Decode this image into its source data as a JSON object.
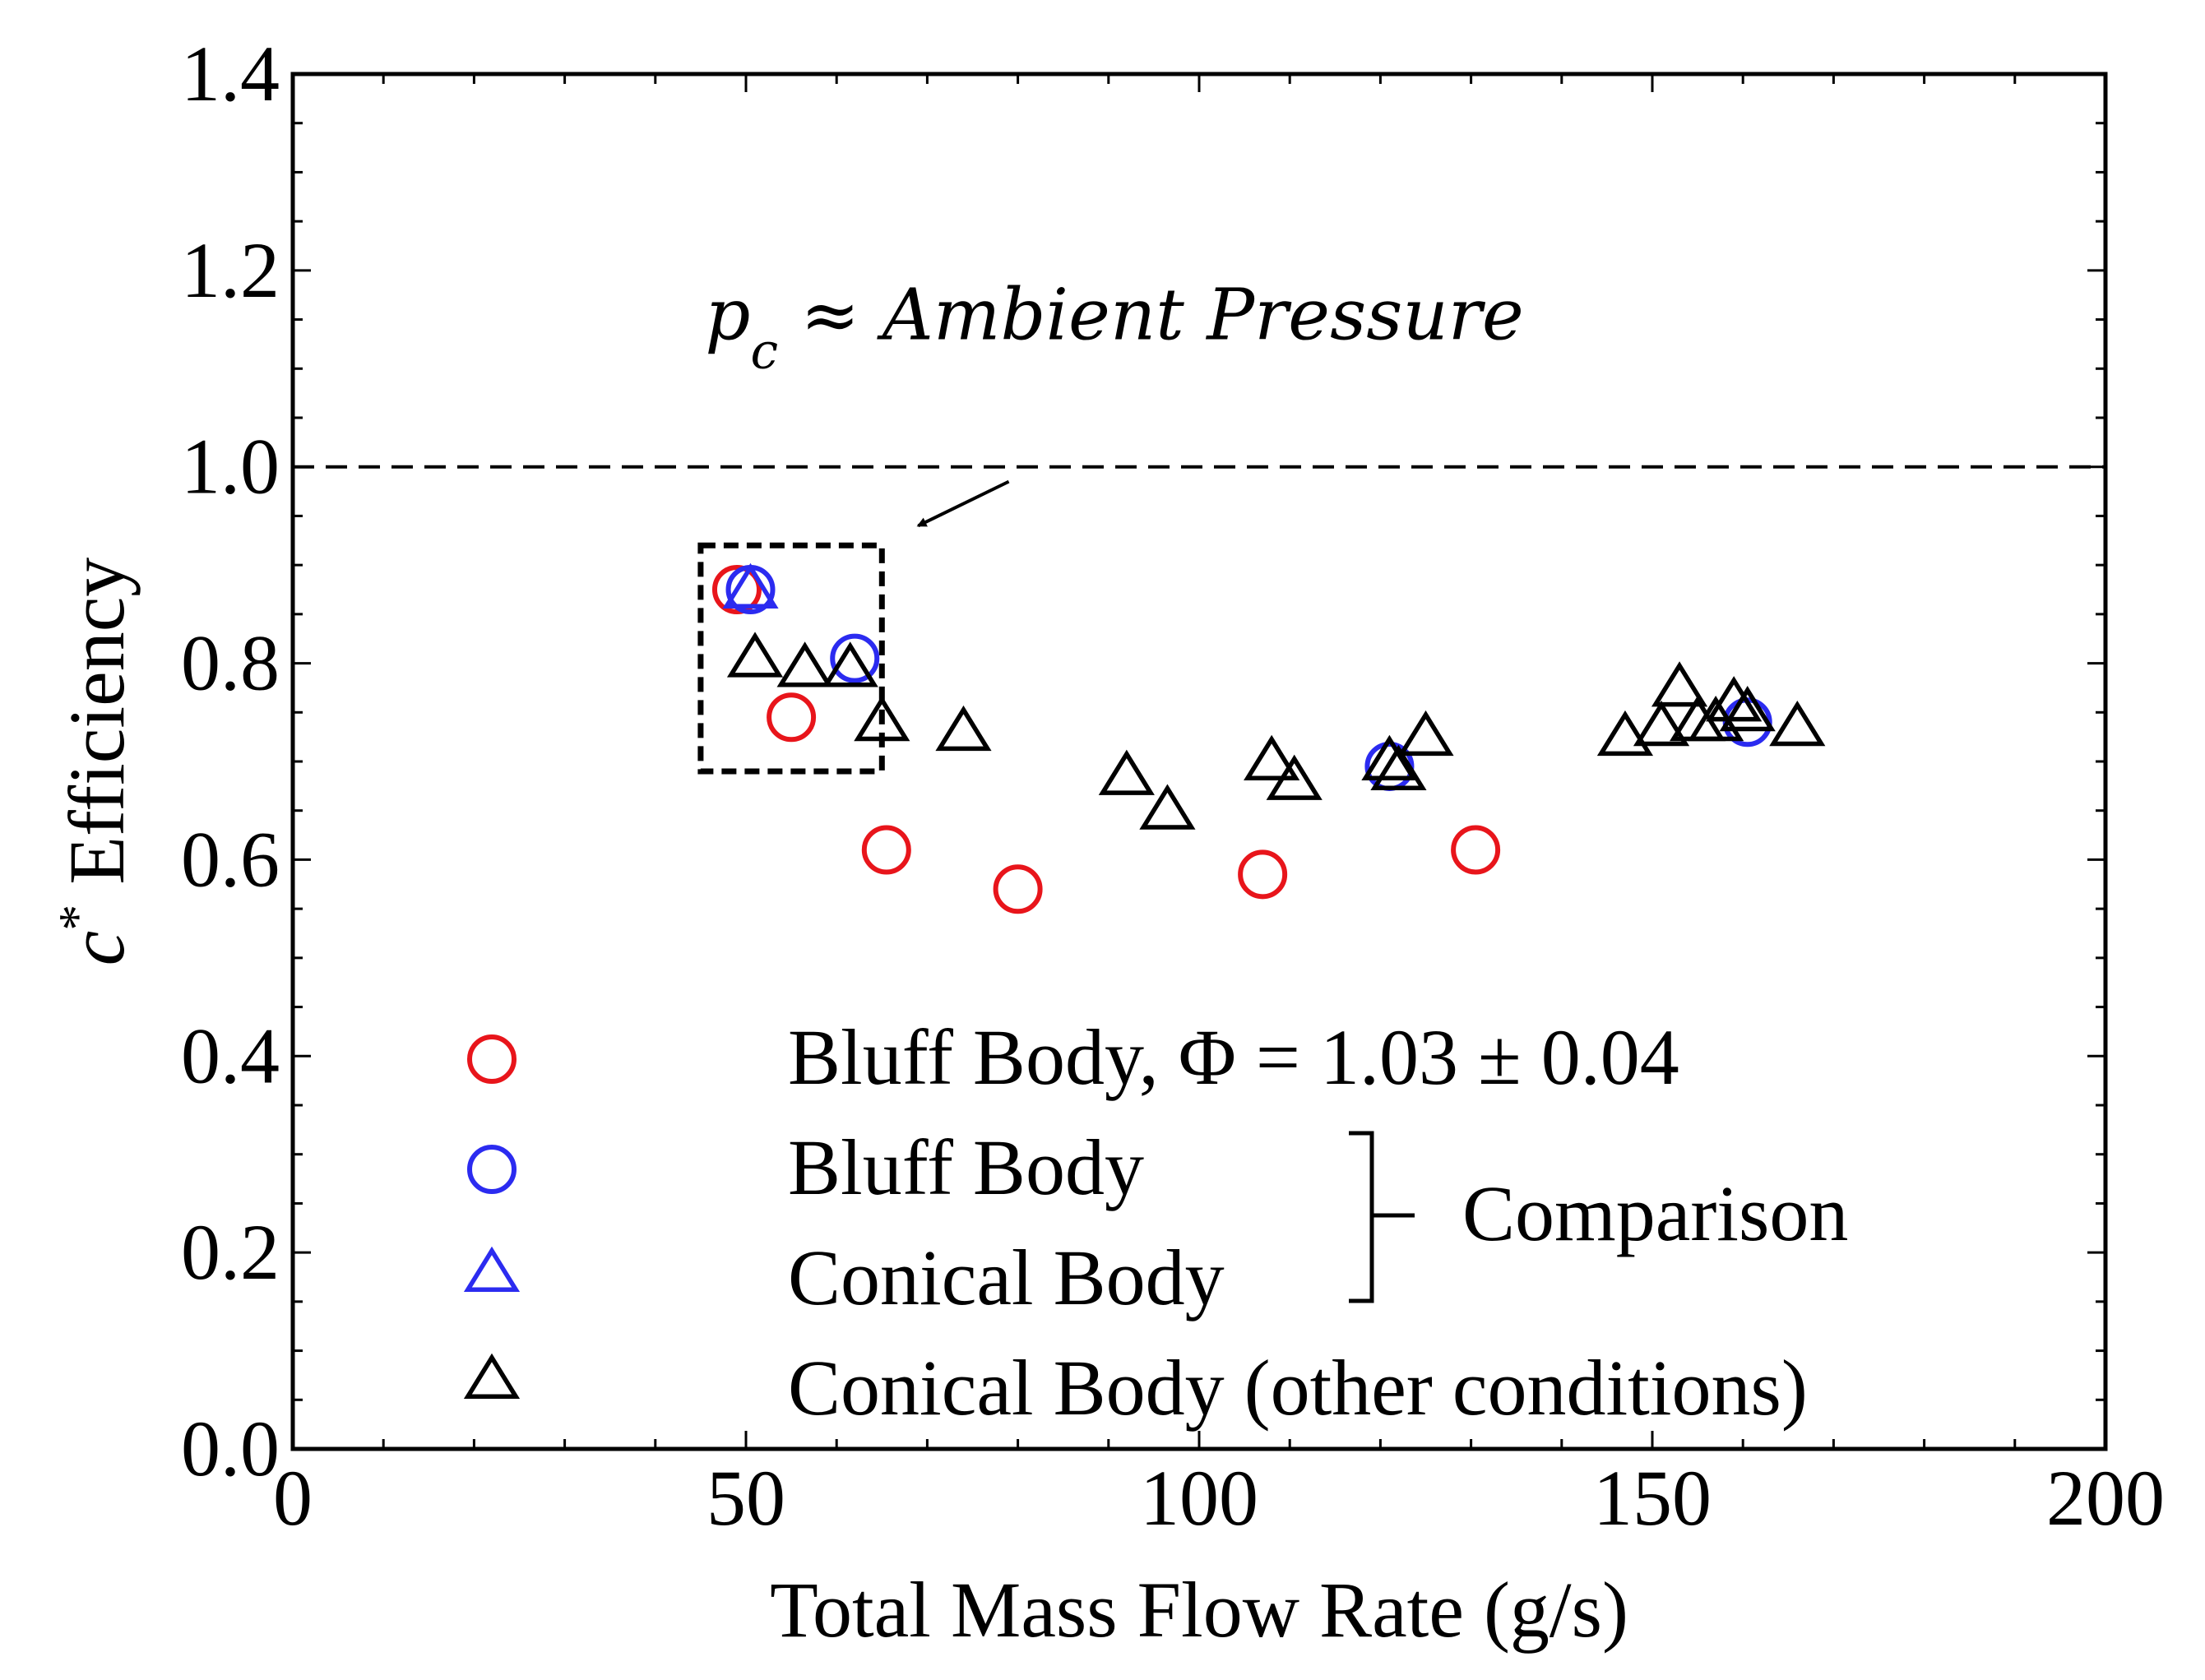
{
  "chart_data": {
    "type": "scatter",
    "xlabel": "Total Mass Flow Rate (g/s)",
    "ylabel_var": "c",
    "ylabel_sup": "*",
    "ylabel_rest": " Efficiency",
    "xlim": [
      0,
      200
    ],
    "ylim": [
      0.0,
      1.4
    ],
    "xticks": [
      0,
      50,
      100,
      150,
      200
    ],
    "xtick_labels": [
      "0",
      "50",
      "100",
      "150",
      "200"
    ],
    "yticks": [
      0.0,
      0.2,
      0.4,
      0.6,
      0.8,
      1.0,
      1.2,
      1.4
    ],
    "ytick_labels": [
      "0.0",
      "0.2",
      "0.4",
      "0.6",
      "0.8",
      "1.0",
      "1.2",
      "1.4"
    ],
    "grid": false,
    "reference_line": {
      "y": 1.0,
      "style": "dashed",
      "color": "#000000"
    },
    "highlight_box": {
      "x": [
        45,
        65
      ],
      "y": [
        0.69,
        0.92
      ],
      "style": "dashed"
    },
    "annotation": {
      "text": "p_c ≈ Ambient Pressure",
      "var": "p",
      "sub": "c",
      "rest": " ≈ Ambient Pressure",
      "text_at": [
        45.5,
        1.13
      ],
      "arrow_from": [
        79,
        0.985
      ],
      "arrow_to": [
        69,
        0.94
      ]
    },
    "legend_position": "bottom-center (inside plot)",
    "legend": [
      {
        "marker": "circle",
        "color": "#e8151b",
        "label": "Bluff Body, Φ = 1.03 ± 0.04"
      },
      {
        "marker": "circle",
        "color": "#2b2bf0",
        "label": "Bluff Body"
      },
      {
        "marker": "triangle",
        "color": "#2b2bf0",
        "label": "Conical Body"
      },
      {
        "marker": "triangle",
        "color": "#000000",
        "label": "Conical Body (other conditions)"
      }
    ],
    "legend_group_label": "Comparison",
    "series": [
      {
        "name": "Bluff Body, Φ = 1.03 ± 0.04",
        "marker": "circle",
        "color": "#e8151b",
        "x": [
          49,
          55,
          65.5,
          80,
          107,
          130.5
        ],
        "y": [
          0.875,
          0.745,
          0.61,
          0.57,
          0.585,
          0.61
        ]
      },
      {
        "name": "Bluff Body",
        "marker": "circle",
        "color": "#2b2bf0",
        "x": [
          50.5,
          62,
          121,
          160.5
        ],
        "y": [
          0.875,
          0.805,
          0.695,
          0.74
        ]
      },
      {
        "name": "Conical Body",
        "marker": "triangle",
        "color": "#2b2bf0",
        "x": [
          50.5
        ],
        "y": [
          0.875
        ]
      },
      {
        "name": "Conical Body (other conditions)",
        "marker": "triangle",
        "color": "#000000",
        "x": [
          51,
          56.5,
          61.5,
          65,
          74,
          92,
          96.5,
          108,
          110.5,
          121,
          122,
          125,
          147,
          151,
          153,
          155,
          157,
          159,
          160.5,
          166
        ],
        "y": [
          0.805,
          0.795,
          0.795,
          0.74,
          0.73,
          0.685,
          0.65,
          0.7,
          0.68,
          0.7,
          0.69,
          0.725,
          0.725,
          0.735,
          0.775,
          0.74,
          0.74,
          0.76,
          0.75,
          0.735
        ]
      }
    ]
  }
}
